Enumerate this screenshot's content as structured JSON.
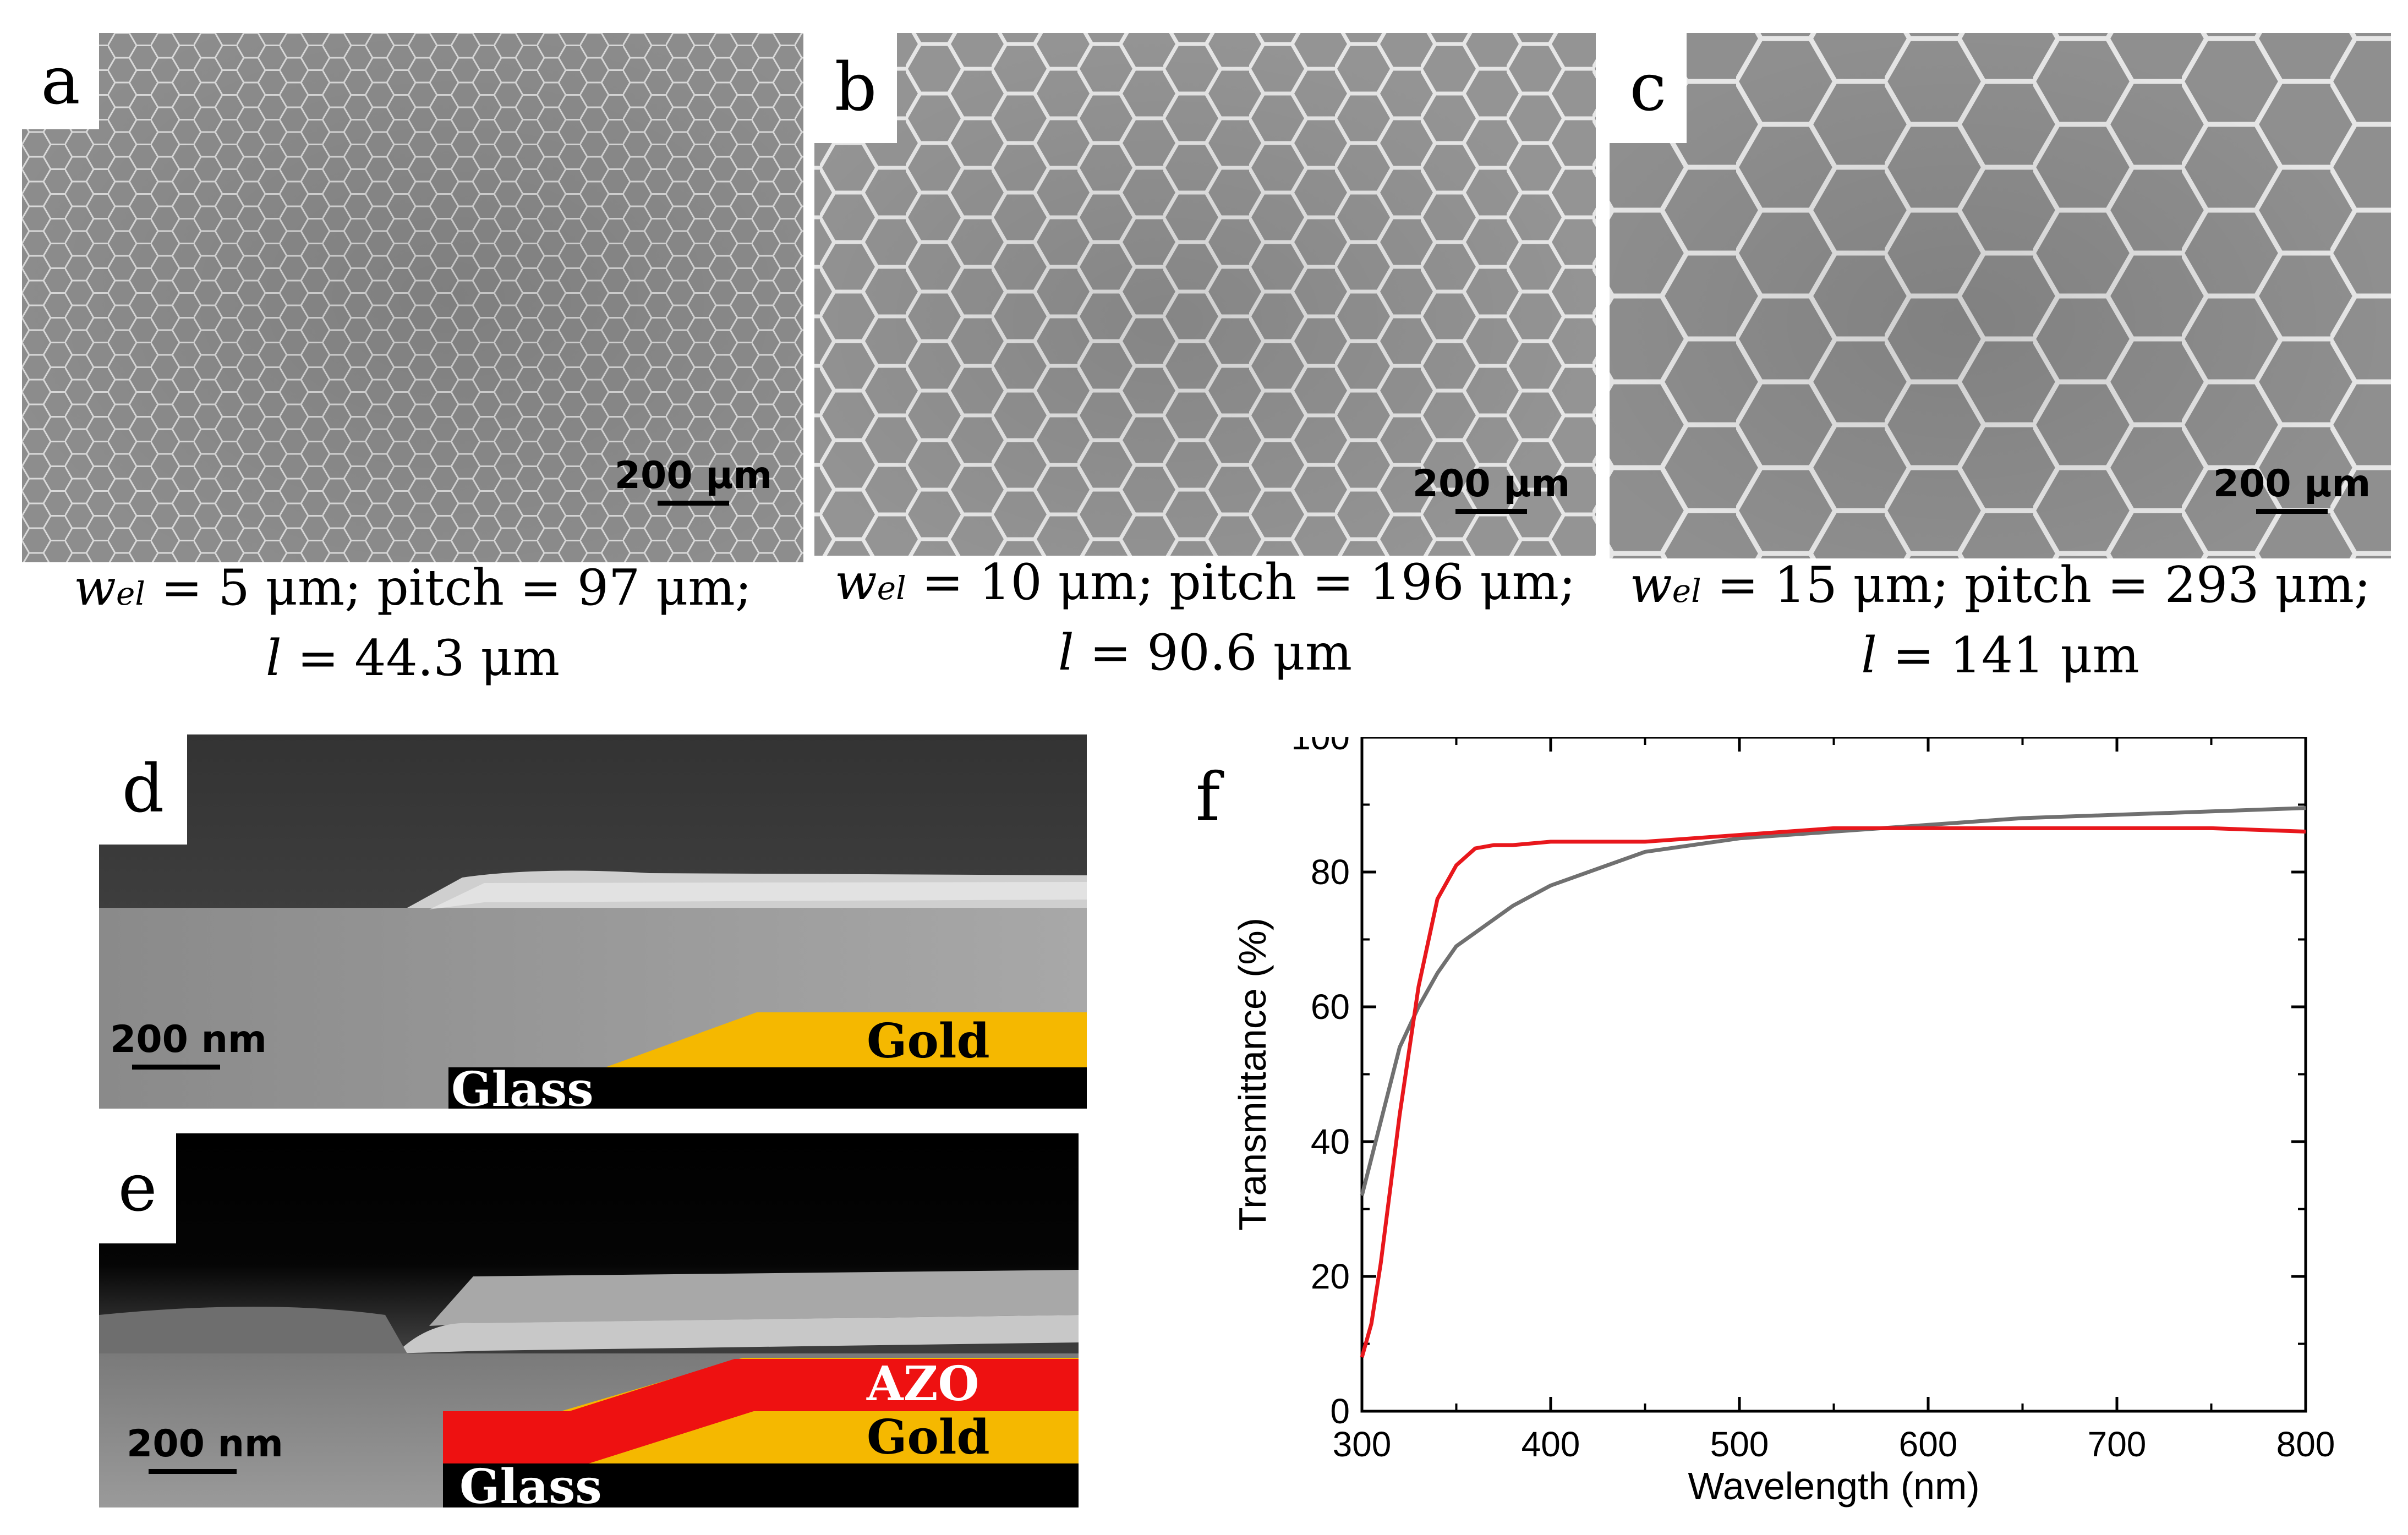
{
  "figure": {
    "panel_a": {
      "letter": "a",
      "scale": "200 μm",
      "caption_line1_prefix": "w",
      "caption_line1_sub": "el",
      "caption_line1_rest": " = 5 μm; pitch = 97 μm;",
      "caption_line2_var": "l",
      "caption_line2_rest": " = 44.3 μm"
    },
    "panel_b": {
      "letter": "b",
      "scale": "200 μm",
      "caption_line1_prefix": "w",
      "caption_line1_sub": "el",
      "caption_line1_rest": " = 10 μm; pitch = 196 μm;",
      "caption_line2_var": "l",
      "caption_line2_rest": " = 90.6 μm"
    },
    "panel_c": {
      "letter": "c",
      "scale": "200 μm",
      "caption_line1_prefix": "w",
      "caption_line1_sub": "el",
      "caption_line1_rest": " = 15 μm; pitch = 293 μm;",
      "caption_line2_var": "l",
      "caption_line2_rest": " = 141 μm"
    },
    "panel_d": {
      "letter": "d",
      "scale": "200 nm",
      "layer_gold": "Gold",
      "layer_glass": "Glass"
    },
    "panel_e": {
      "letter": "e",
      "scale": "200 nm",
      "layer_azo": "AZO",
      "layer_gold": "Gold",
      "layer_glass": "Glass"
    },
    "panel_f": {
      "letter": "f"
    }
  },
  "colors": {
    "red_curve": "#e8171c",
    "gray_curve": "#707070",
    "gold": "#f5b800",
    "azo": "#ee1111",
    "glass": "#000000"
  },
  "chart_data": {
    "type": "line",
    "title": "",
    "xlabel": "Wavelength (nm)",
    "ylabel": "Transmittance (%)",
    "xlim": [
      300,
      800
    ],
    "ylim": [
      0,
      100
    ],
    "xticks": [
      "300",
      "400",
      "500",
      "600",
      "700",
      "800"
    ],
    "yticks": [
      "0",
      "20",
      "40",
      "60",
      "80",
      "100"
    ],
    "series": [
      {
        "name": "gray",
        "color": "#707070",
        "x": [
          300,
          310,
          320,
          330,
          340,
          350,
          360,
          380,
          400,
          450,
          500,
          550,
          600,
          650,
          700,
          750,
          800
        ],
        "y": [
          32,
          43,
          54,
          60,
          65,
          69,
          71,
          75,
          78,
          83,
          85,
          86,
          87,
          88,
          88.5,
          89,
          89.5
        ]
      },
      {
        "name": "red",
        "color": "#e8171c",
        "x": [
          300,
          305,
          310,
          320,
          330,
          340,
          350,
          360,
          370,
          380,
          400,
          450,
          500,
          550,
          600,
          650,
          700,
          750,
          800
        ],
        "y": [
          8,
          13,
          22,
          44,
          63,
          76,
          81,
          83.5,
          84,
          84,
          84.5,
          84.5,
          85.5,
          86.5,
          86.5,
          86.5,
          86.5,
          86.5,
          86
        ]
      }
    ]
  }
}
